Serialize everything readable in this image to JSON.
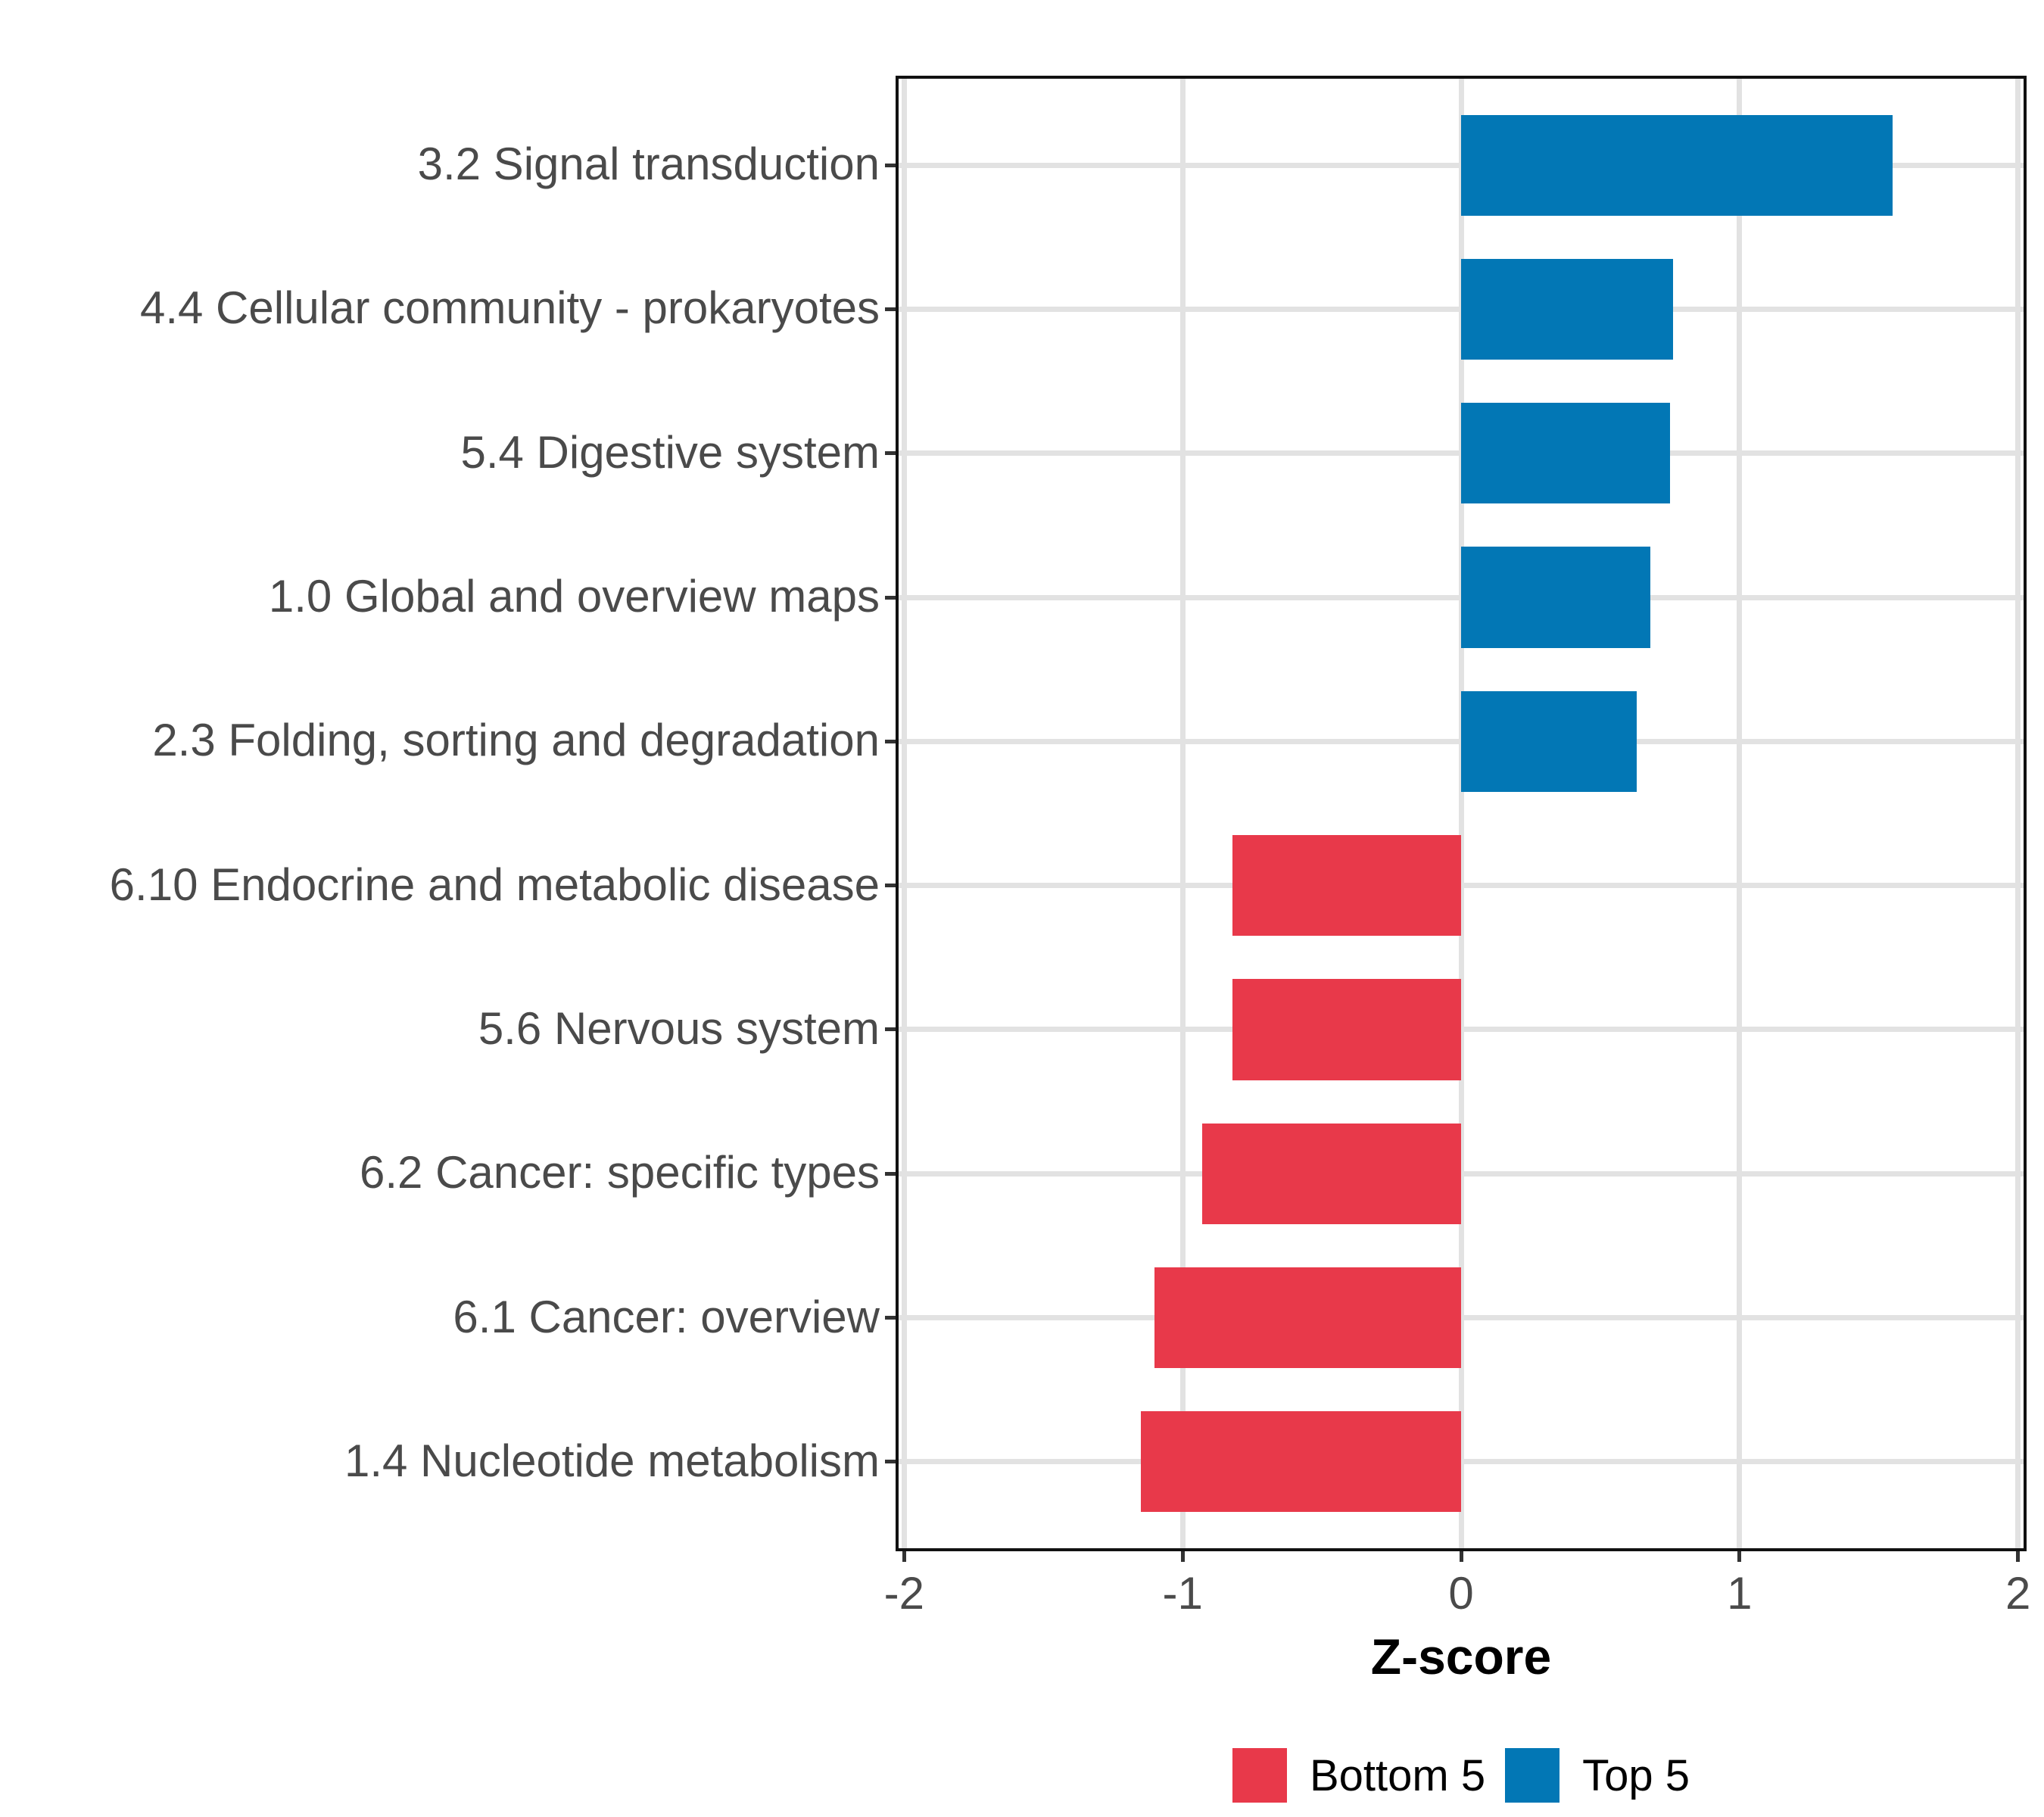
{
  "chart_data": {
    "type": "bar",
    "orientation": "horizontal",
    "title": "",
    "xlabel": "Z-score",
    "ylabel": "",
    "xlim": [
      -2.02,
      2.02
    ],
    "xticks": [
      -2,
      -1,
      0,
      1,
      2
    ],
    "xtick_labels": [
      "-2",
      "-1",
      "0",
      "1",
      "2"
    ],
    "grid": "major gridlines only, light gray on white panel with black border",
    "legend_position": "bottom",
    "bars": [
      {
        "label": "3.2 Signal transduction",
        "value": 1.55,
        "group": "Top 5"
      },
      {
        "label": "4.4 Cellular community - prokaryotes",
        "value": 0.76,
        "group": "Top 5"
      },
      {
        "label": "5.4 Digestive system",
        "value": 0.75,
        "group": "Top 5"
      },
      {
        "label": "1.0 Global and overview maps",
        "value": 0.68,
        "group": "Top 5"
      },
      {
        "label": "2.3 Folding, sorting and degradation",
        "value": 0.63,
        "group": "Top 5"
      },
      {
        "label": "6.10 Endocrine and metabolic disease",
        "value": -0.82,
        "group": "Bottom 5"
      },
      {
        "label": "5.6 Nervous system",
        "value": -0.82,
        "group": "Bottom 5"
      },
      {
        "label": "6.2 Cancer: specific types",
        "value": -0.93,
        "group": "Bottom 5"
      },
      {
        "label": "6.1 Cancer: overview",
        "value": -1.1,
        "group": "Bottom 5"
      },
      {
        "label": "1.4 Nucleotide metabolism",
        "value": -1.15,
        "group": "Bottom 5"
      }
    ],
    "legend": [
      {
        "label": "Bottom 5",
        "color": "#E8394A"
      },
      {
        "label": "Top 5",
        "color": "#0277B5"
      }
    ],
    "colors": {
      "Bottom 5": "#E8394A",
      "Top 5": "#0277B5"
    },
    "panel_border_color": "#111111",
    "gridline_color": "#E2E2E2",
    "axis_text_color": "#4A4A4A"
  }
}
